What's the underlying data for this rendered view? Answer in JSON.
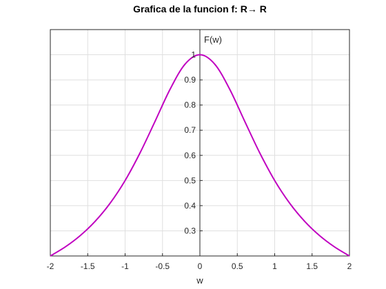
{
  "chart_data": {
    "type": "line",
    "title": "Grafica de la funcion f: R→ R",
    "xlabel": "w",
    "ylabel": "F(w)",
    "xlim": [
      -2,
      2
    ],
    "ylim": [
      0.2,
      1.1
    ],
    "x_ticks": [
      -2,
      -1.5,
      -1,
      -0.5,
      0,
      0.5,
      1,
      1.5,
      2
    ],
    "x_tick_labels": [
      "-2",
      "-1.5",
      "-1",
      "-0.5",
      "0",
      "0.5",
      "1",
      "1.5",
      "2"
    ],
    "y_ticks": [
      0.3,
      0.4,
      0.5,
      0.6,
      0.7,
      0.8,
      0.9,
      1
    ],
    "y_tick_labels": [
      "0.3",
      "0.4",
      "0.5",
      "0.6",
      "0.7",
      "0.8",
      "0.9",
      "1"
    ],
    "grid": true,
    "series": [
      {
        "color": "#c000c0",
        "x": [
          -2,
          -1.8,
          -1.6,
          -1.4,
          -1.2,
          -1,
          -0.8,
          -0.6,
          -0.4,
          -0.2,
          0,
          0.2,
          0.4,
          0.6,
          0.8,
          1,
          1.2,
          1.4,
          1.6,
          1.8,
          2
        ],
        "y": [
          0.2,
          0.236,
          0.281,
          0.338,
          0.41,
          0.5,
          0.61,
          0.735,
          0.862,
          0.962,
          1,
          0.962,
          0.862,
          0.735,
          0.61,
          0.5,
          0.41,
          0.338,
          0.281,
          0.236,
          0.2
        ]
      }
    ]
  }
}
